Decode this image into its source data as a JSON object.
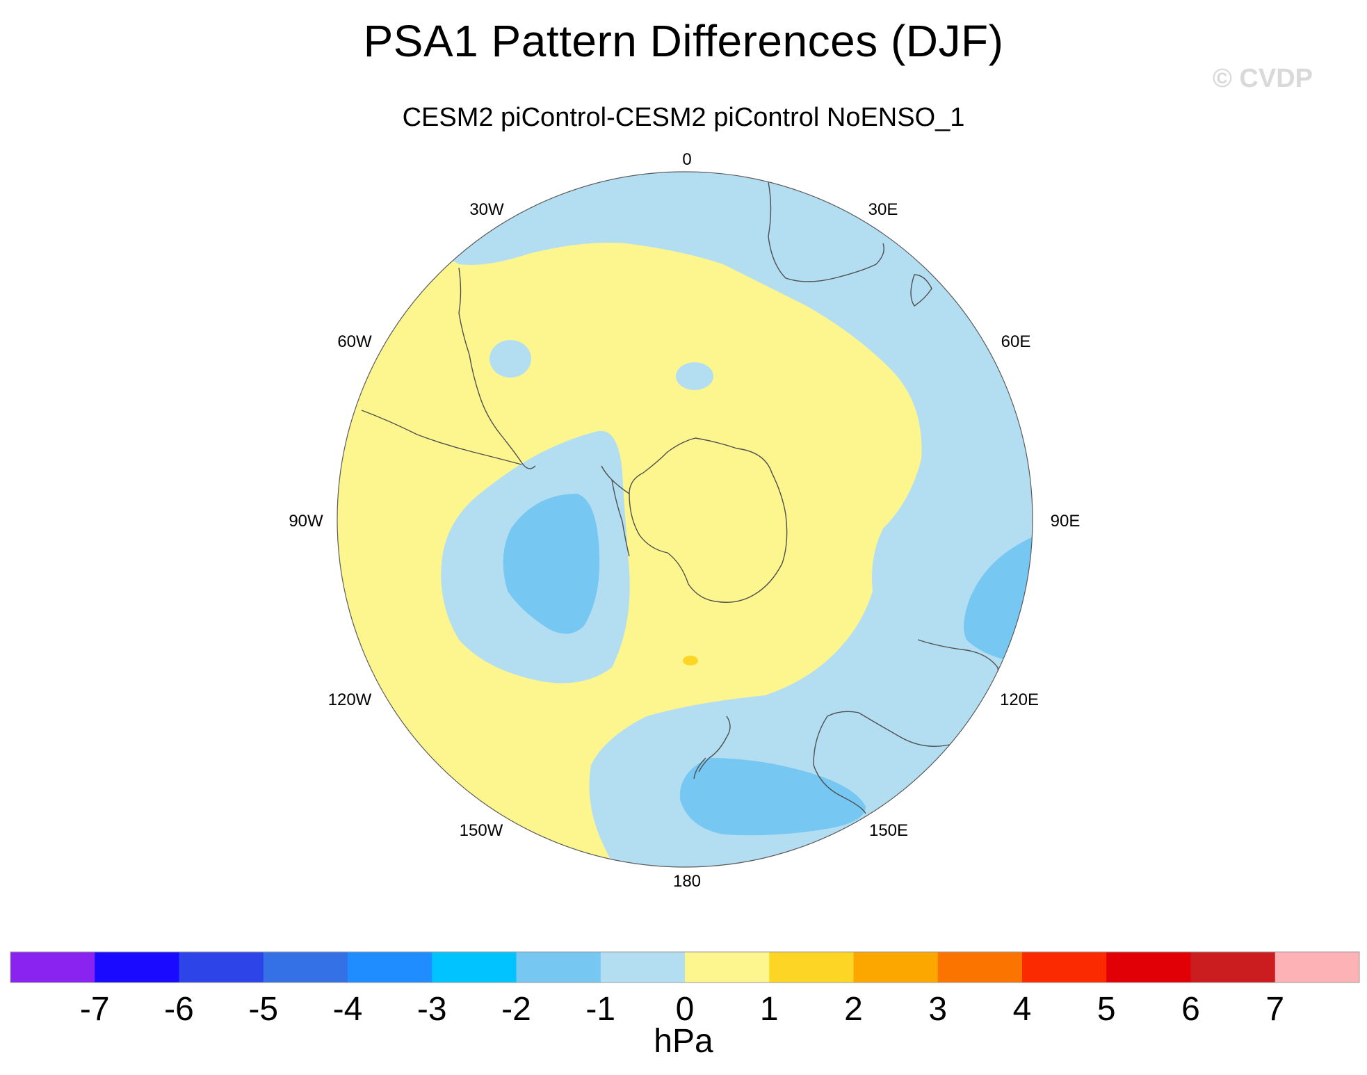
{
  "title": "PSA1 Pattern Differences (DJF)",
  "watermark": "© CVDP",
  "subtitle": "CESM2 piControl-CESM2 piControl NoENSO_1",
  "longitude_labels": [
    "0",
    "30E",
    "60E",
    "90E",
    "120E",
    "150E",
    "180",
    "150W",
    "120W",
    "90W",
    "60W",
    "30W"
  ],
  "colorbar": {
    "units": "hPa",
    "tick_labels": [
      "-7",
      "-6",
      "-5",
      "-4",
      "-3",
      "-2",
      "-1",
      "0",
      "1",
      "2",
      "3",
      "4",
      "5",
      "6",
      "7"
    ],
    "colors": [
      "#8a22f0",
      "#1a0aff",
      "#2d45e8",
      "#3470e6",
      "#1f8cff",
      "#00c3ff",
      "#76c7f2",
      "#b3def2",
      "#fdf68f",
      "#fdd524",
      "#fba700",
      "#fc7400",
      "#fc2a00",
      "#e00006",
      "#cb1d20",
      "#fdb3b5"
    ]
  },
  "colors": {
    "coast": "#4f4f4f",
    "neg1": "#b3def2",
    "neg2": "#76c7f2",
    "pos1": "#fdf68f",
    "pos2": "#fdd524"
  }
}
